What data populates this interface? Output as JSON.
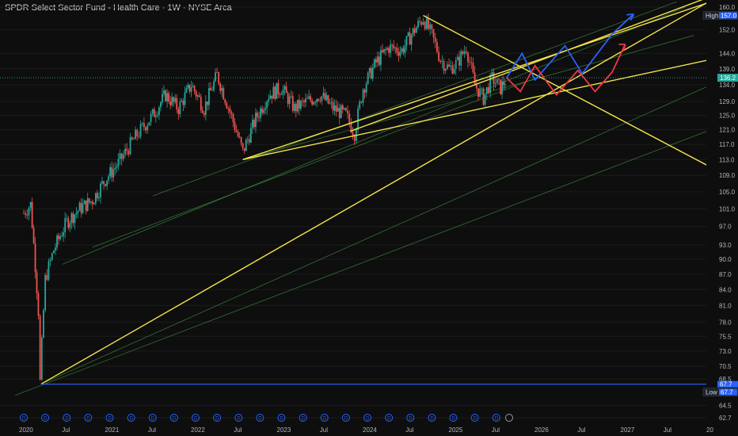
{
  "header": {
    "title": "SPDR Select Sector Fund - Health Care · 1W · NYSE Arca"
  },
  "chart_data": {
    "type": "candlestick",
    "y_axis_ticks": [
      160.0,
      152.0,
      144.0,
      139.0,
      134.0,
      129.0,
      125.0,
      121.0,
      117.0,
      113.0,
      109.0,
      105.0,
      101.0,
      97.0,
      93.0,
      90.0,
      87.0,
      84.0,
      81.0,
      78.0,
      75.5,
      73.0,
      70.5,
      68.5,
      64.5,
      62.7
    ],
    "y_axis_ticks_display": [
      "160.0",
      "152.0",
      "144.0",
      "139.0",
      "134.0",
      "129.0",
      "125.0",
      "121.0",
      "117.0",
      "113.0",
      "109.0",
      "105.0",
      "101.0",
      "97.0",
      "93.0",
      "90.0",
      "87.0",
      "84.0",
      "81.0",
      "78.0",
      "75.5",
      "73.0",
      "70.5",
      "68.5",
      "64.5",
      "62.7"
    ],
    "x_axis_ticks": [
      "2020",
      "Jul",
      "2021",
      "Jul",
      "2022",
      "Jul",
      "2023",
      "Jul",
      "2024",
      "Jul",
      "2025",
      "Jul",
      "2026",
      "Jul",
      "2027",
      "Jul",
      "20"
    ],
    "high": {
      "label": "High",
      "value": "157.0"
    },
    "low": {
      "label": "Low",
      "value": "67.7"
    },
    "last_price": "136.2",
    "low_marker": "67.7",
    "candles": [
      {
        "x": 2020.0,
        "c": 100.0
      },
      {
        "x": 2020.08,
        "c": 102.0
      },
      {
        "x": 2020.17,
        "c": 80.0
      },
      {
        "x": 2020.19,
        "c": 68.0
      },
      {
        "x": 2020.25,
        "c": 86.0
      },
      {
        "x": 2020.35,
        "c": 92.0
      },
      {
        "x": 2020.5,
        "c": 98.0
      },
      {
        "x": 2020.65,
        "c": 101.0
      },
      {
        "x": 2020.8,
        "c": 103.0
      },
      {
        "x": 2020.95,
        "c": 108.0
      },
      {
        "x": 2021.1,
        "c": 112.0
      },
      {
        "x": 2021.3,
        "c": 119.0
      },
      {
        "x": 2021.5,
        "c": 125.0
      },
      {
        "x": 2021.65,
        "c": 131.0
      },
      {
        "x": 2021.8,
        "c": 127.0
      },
      {
        "x": 2021.95,
        "c": 134.0
      },
      {
        "x": 2022.1,
        "c": 127.0
      },
      {
        "x": 2022.25,
        "c": 137.0
      },
      {
        "x": 2022.4,
        "c": 126.0
      },
      {
        "x": 2022.55,
        "c": 115.0
      },
      {
        "x": 2022.7,
        "c": 124.0
      },
      {
        "x": 2022.85,
        "c": 131.0
      },
      {
        "x": 2023.0,
        "c": 133.0
      },
      {
        "x": 2023.15,
        "c": 127.0
      },
      {
        "x": 2023.3,
        "c": 129.0
      },
      {
        "x": 2023.45,
        "c": 131.0
      },
      {
        "x": 2023.6,
        "c": 127.0
      },
      {
        "x": 2023.75,
        "c": 125.0
      },
      {
        "x": 2023.85,
        "c": 120.0
      },
      {
        "x": 2023.95,
        "c": 133.0
      },
      {
        "x": 2024.1,
        "c": 141.0
      },
      {
        "x": 2024.25,
        "c": 146.0
      },
      {
        "x": 2024.4,
        "c": 145.0
      },
      {
        "x": 2024.55,
        "c": 152.0
      },
      {
        "x": 2024.65,
        "c": 156.0
      },
      {
        "x": 2024.75,
        "c": 150.0
      },
      {
        "x": 2024.85,
        "c": 142.0
      },
      {
        "x": 2024.95,
        "c": 139.0
      },
      {
        "x": 2025.05,
        "c": 141.0
      },
      {
        "x": 2025.15,
        "c": 146.0
      },
      {
        "x": 2025.25,
        "c": 134.0
      },
      {
        "x": 2025.35,
        "c": 130.0
      },
      {
        "x": 2025.45,
        "c": 136.0
      },
      {
        "x": 2025.55,
        "c": 133.0
      },
      {
        "x": 2025.62,
        "c": 136.2
      }
    ],
    "projections": {
      "blue": [
        [
          2025.62,
          136.2
        ],
        [
          2025.8,
          144.0
        ],
        [
          2025.95,
          135.5
        ],
        [
          2026.3,
          146.5
        ],
        [
          2026.5,
          137.5
        ],
        [
          2026.85,
          150.5
        ],
        [
          2027.1,
          157.5
        ]
      ],
      "red": [
        [
          2025.62,
          136.2
        ],
        [
          2025.78,
          132.0
        ],
        [
          2025.95,
          140.0
        ],
        [
          2026.2,
          131.0
        ],
        [
          2026.45,
          138.5
        ],
        [
          2026.65,
          132.0
        ],
        [
          2026.85,
          138.0
        ],
        [
          2027.0,
          147.0
        ]
      ]
    },
    "trendlines_yellow": [
      [
        [
          2020.2,
          67.7
        ],
        [
          2028.0,
          162.5
        ]
      ],
      [
        [
          2022.55,
          113.0
        ],
        [
          2028.0,
          142.0
        ]
      ],
      [
        [
          2022.55,
          113.0
        ],
        [
          2028.0,
          162.0
        ]
      ],
      [
        [
          2024.65,
          157.0
        ],
        [
          2028.0,
          111.0
        ]
      ],
      [
        [
          2023.8,
          120.5
        ],
        [
          2028.0,
          164.0
        ]
      ]
    ],
    "trendlines_green": [
      [
        [
          2020.2,
          67.7
        ],
        [
          2028.0,
          134.0
        ]
      ],
      [
        [
          2019.9,
          66.0
        ],
        [
          2028.0,
          121.0
        ]
      ],
      [
        [
          2020.45,
          89.0
        ],
        [
          2027.7,
          160.0
        ]
      ],
      [
        [
          2021.5,
          104.0
        ],
        [
          2027.6,
          162.0
        ]
      ],
      [
        [
          2020.8,
          92.5
        ],
        [
          2026.0,
          136.5
        ]
      ],
      [
        [
          2022.55,
          113.0
        ],
        [
          2027.8,
          150.0
        ]
      ]
    ],
    "low_line": 67.7,
    "dividend_markers_count": 23
  }
}
